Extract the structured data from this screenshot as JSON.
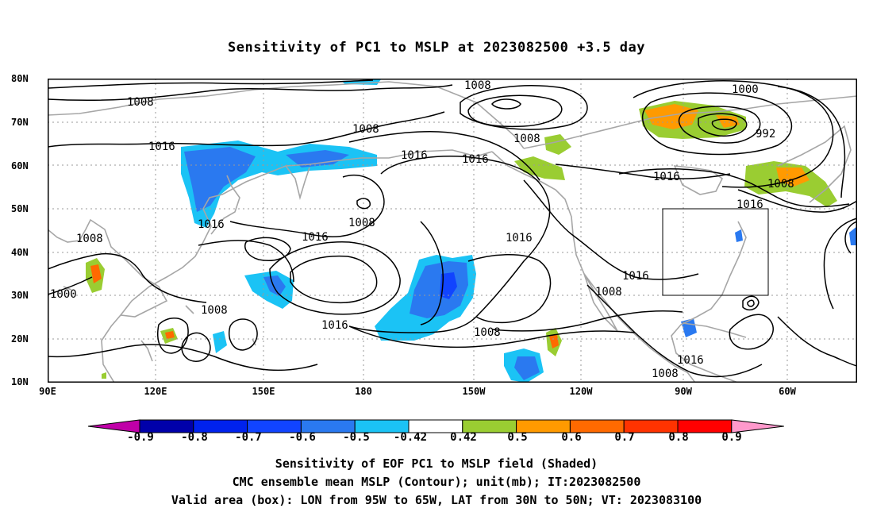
{
  "title": "Sensitivity of PC1 to MSLP at 2023082500 +3.5 day",
  "lat_labels": [
    "80N",
    "70N",
    "60N",
    "50N",
    "40N",
    "30N",
    "20N",
    "10N"
  ],
  "lon_labels": [
    "90E",
    "120E",
    "150E",
    "180",
    "150W",
    "120W",
    "90W",
    "60W"
  ],
  "colorbar": {
    "labels": [
      "-0.9",
      "-0.8",
      "-0.7",
      "-0.6",
      "-0.5",
      "-0.42",
      "0.42",
      "0.5",
      "0.6",
      "0.7",
      "0.8",
      "0.9"
    ],
    "colors": [
      "#c000a8",
      "#0000aa",
      "#0022ee",
      "#1144ff",
      "#2a79f0",
      "#1bc3f5",
      "#ffffff",
      "#9acd32",
      "#ff9a00",
      "#ff6a00",
      "#ff3300",
      "#ff0000",
      "#ff99cc"
    ]
  },
  "contour_labels": [
    "1008",
    "1008",
    "1008",
    "1008",
    "1000",
    "992",
    "1016",
    "1016",
    "1016",
    "1016",
    "1008",
    "1016",
    "1016",
    "1008",
    "1008",
    "1008",
    "1016",
    "1016",
    "1016",
    "1016",
    "1008",
    "1000",
    "1008",
    "1016",
    "1008"
  ],
  "box": {
    "label": "valid area",
    "lon_range": [
      "95W",
      "65W"
    ],
    "lat_range": [
      "30N",
      "50N"
    ]
  },
  "captions": [
    "Sensitivity of EOF PC1 to MSLP field (Shaded)",
    "CMC ensemble mean MSLP (Contour); unit(mb); IT:2023082500",
    "Valid area (box): LON from 95W to 65W, LAT from 30N to 50N; VT: 2023083100"
  ]
}
